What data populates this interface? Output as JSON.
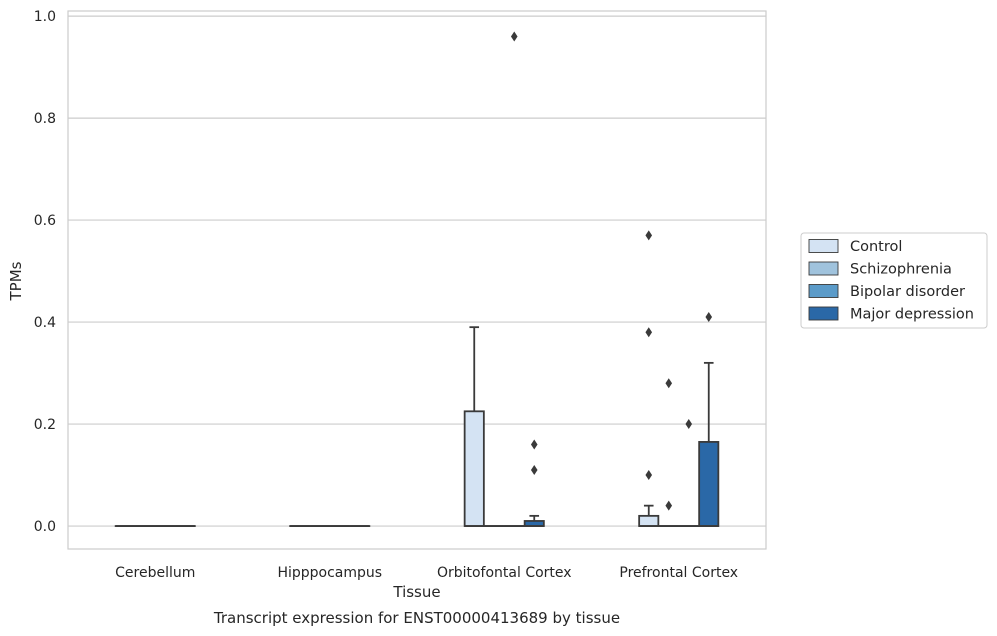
{
  "chart_data": {
    "type": "box",
    "title": "Transcript expression for ENST00000413689 by tissue",
    "xlabel": "Tissue",
    "ylabel": "TPMs",
    "ylim": [
      -0.045,
      1.01
    ],
    "yticks": [
      "0.0",
      "0.2",
      "0.4",
      "0.6",
      "0.8",
      "1.0"
    ],
    "ytick_values": [
      0.0,
      0.2,
      0.4,
      0.6,
      0.8,
      1.0
    ],
    "grid": true,
    "legend_position": "right",
    "categories": [
      "Cerebellum",
      "Hipppocampus",
      "Orbitofontal Cortex",
      "Prefrontal Cortex"
    ],
    "series": [
      {
        "name": "Control",
        "color": "#d4e3f3",
        "boxes": [
          {
            "q1": 0,
            "median": 0,
            "q3": 0,
            "whisker_low": 0,
            "whisker_high": 0,
            "outliers": []
          },
          {
            "q1": 0,
            "median": 0,
            "q3": 0,
            "whisker_low": 0,
            "whisker_high": 0,
            "outliers": []
          },
          {
            "q1": 0,
            "median": 0,
            "q3": 0.225,
            "whisker_low": 0,
            "whisker_high": 0.39,
            "outliers": []
          },
          {
            "q1": 0,
            "median": 0,
            "q3": 0.02,
            "whisker_low": 0,
            "whisker_high": 0.04,
            "outliers": [
              0.57,
              0.38,
              0.1
            ]
          }
        ]
      },
      {
        "name": "Schizophrenia",
        "color": "#a0c3dd",
        "boxes": [
          {
            "q1": 0,
            "median": 0,
            "q3": 0,
            "whisker_low": 0,
            "whisker_high": 0,
            "outliers": []
          },
          {
            "q1": 0,
            "median": 0,
            "q3": 0,
            "whisker_low": 0,
            "whisker_high": 0,
            "outliers": []
          },
          {
            "q1": 0,
            "median": 0,
            "q3": 0,
            "whisker_low": 0,
            "whisker_high": 0,
            "outliers": []
          },
          {
            "q1": 0,
            "median": 0,
            "q3": 0,
            "whisker_low": 0,
            "whisker_high": 0,
            "outliers": [
              0.28,
              0.04
            ]
          }
        ]
      },
      {
        "name": "Bipolar disorder",
        "color": "#5b9bc9",
        "boxes": [
          {
            "q1": 0,
            "median": 0,
            "q3": 0,
            "whisker_low": 0,
            "whisker_high": 0,
            "outliers": []
          },
          {
            "q1": 0,
            "median": 0,
            "q3": 0,
            "whisker_low": 0,
            "whisker_high": 0,
            "outliers": []
          },
          {
            "q1": 0,
            "median": 0,
            "q3": 0,
            "whisker_low": 0,
            "whisker_high": 0,
            "outliers": [
              0.96
            ]
          },
          {
            "q1": 0,
            "median": 0,
            "q3": 0,
            "whisker_low": 0,
            "whisker_high": 0,
            "outliers": [
              0.2
            ]
          }
        ]
      },
      {
        "name": "Major depression",
        "color": "#2a68a7",
        "boxes": [
          {
            "q1": 0,
            "median": 0,
            "q3": 0,
            "whisker_low": 0,
            "whisker_high": 0,
            "outliers": []
          },
          {
            "q1": 0,
            "median": 0,
            "q3": 0,
            "whisker_low": 0,
            "whisker_high": 0,
            "outliers": []
          },
          {
            "q1": 0,
            "median": 0,
            "q3": 0.01,
            "whisker_low": 0,
            "whisker_high": 0.02,
            "outliers": [
              0.16,
              0.11
            ]
          },
          {
            "q1": 0,
            "median": 0,
            "q3": 0.165,
            "whisker_low": 0,
            "whisker_high": 0.32,
            "outliers": [
              0.41
            ]
          }
        ]
      }
    ]
  }
}
